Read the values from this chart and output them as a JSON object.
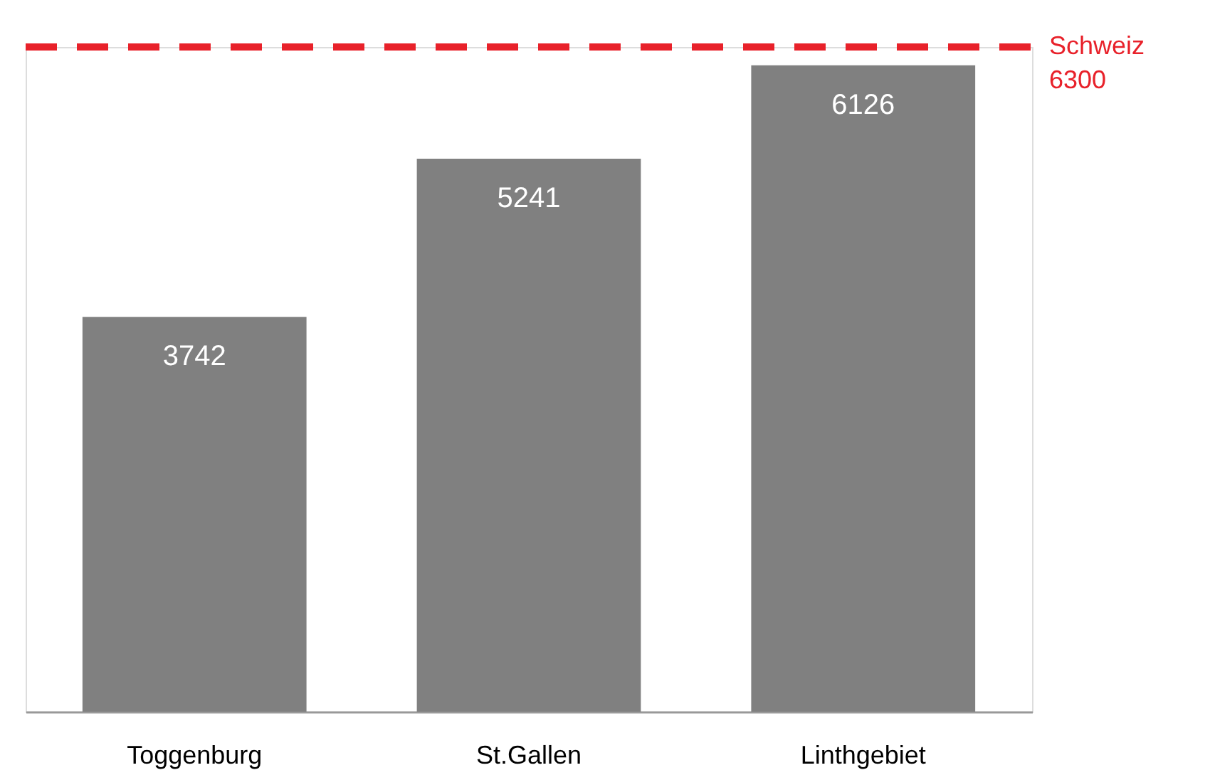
{
  "chart_data": {
    "type": "bar",
    "categories": [
      "Toggenburg",
      "St.Gallen",
      "Linthgebiet"
    ],
    "values": [
      3742,
      5241,
      6126
    ],
    "color": "#808080",
    "data_labels": true,
    "tick_labels": "x",
    "ref_lines": [
      {
        "axis": "y",
        "value": 6300,
        "label": "Schweiz\n6300",
        "color": "#e8212a",
        "line_style": "dashed"
      }
    ]
  }
}
